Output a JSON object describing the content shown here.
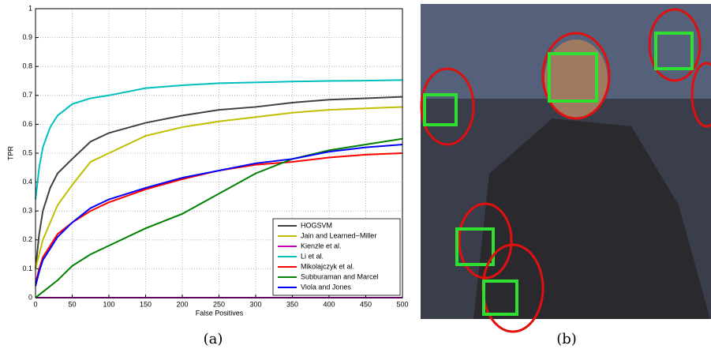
{
  "chart_data": {
    "type": "line",
    "xlabel": "False Positives",
    "ylabel": "TPR",
    "x": [
      0,
      5,
      10,
      20,
      30,
      50,
      75,
      100,
      150,
      200,
      250,
      300,
      350,
      400,
      450,
      500
    ],
    "series": [
      {
        "name": "HOGSVM",
        "color": "#404040",
        "values": [
          0.1,
          0.22,
          0.3,
          0.38,
          0.43,
          0.48,
          0.54,
          0.57,
          0.605,
          0.63,
          0.65,
          0.66,
          0.675,
          0.685,
          0.69,
          0.695
        ]
      },
      {
        "name": "Jain and Learned−Miller",
        "color": "#bfbf00",
        "values": [
          0.1,
          0.15,
          0.2,
          0.26,
          0.32,
          0.39,
          0.47,
          0.5,
          0.56,
          0.59,
          0.61,
          0.625,
          0.64,
          0.65,
          0.655,
          0.66
        ]
      },
      {
        "name": "Kienzle et al.",
        "color": "#bf00bf",
        "values": [
          0,
          0,
          0,
          0,
          0,
          0,
          0,
          0,
          0,
          0,
          0,
          0,
          0,
          0,
          0,
          0
        ]
      },
      {
        "name": "Li et al.",
        "color": "#00bfbf",
        "values": [
          0.34,
          0.45,
          0.52,
          0.59,
          0.63,
          0.67,
          0.69,
          0.7,
          0.725,
          0.735,
          0.742,
          0.745,
          0.748,
          0.75,
          0.751,
          0.753
        ]
      },
      {
        "name": "Mikolajczyk et al.",
        "color": "#ff0000",
        "values": [
          0.05,
          0.1,
          0.14,
          0.18,
          0.22,
          0.26,
          0.3,
          0.33,
          0.375,
          0.41,
          0.44,
          0.46,
          0.47,
          0.485,
          0.495,
          0.5
        ]
      },
      {
        "name": "Subburaman and Marcel",
        "color": "#008000",
        "values": [
          0,
          0.01,
          0.02,
          0.04,
          0.06,
          0.11,
          0.15,
          0.18,
          0.24,
          0.29,
          0.36,
          0.43,
          0.48,
          0.51,
          0.53,
          0.55
        ]
      },
      {
        "name": "Viola and Jones",
        "color": "#0000ff",
        "values": [
          0.04,
          0.09,
          0.13,
          0.17,
          0.21,
          0.26,
          0.31,
          0.34,
          0.38,
          0.415,
          0.44,
          0.465,
          0.48,
          0.505,
          0.52,
          0.53
        ]
      }
    ],
    "xlim": [
      0,
      500
    ],
    "xticks": [
      0,
      50,
      100,
      150,
      200,
      250,
      300,
      350,
      400,
      450,
      500
    ],
    "ylim": [
      0,
      1
    ],
    "yticks": [
      0,
      0.1,
      0.2,
      0.3,
      0.4,
      0.5,
      0.6,
      0.7,
      0.8,
      0.9,
      1
    ],
    "grid": true,
    "legend": "lower right"
  },
  "captions": [
    "(a)",
    "(b)"
  ]
}
